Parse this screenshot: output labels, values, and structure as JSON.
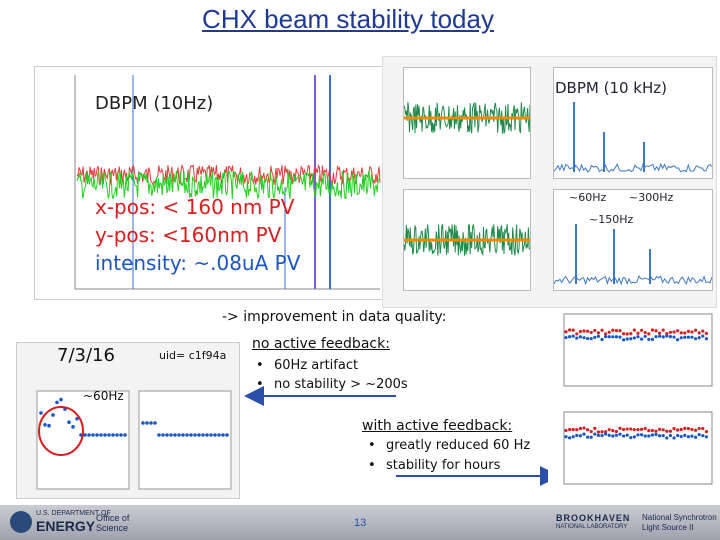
{
  "title": "CHX beam stability today",
  "dbpm": {
    "heading": "DBPM (10Hz)",
    "xpos": "x-pos: < 160 nm PV",
    "ypos": "y-pos: <160nm PV",
    "intensity": "intensity: ~.08uA PV"
  },
  "right_plots": {
    "heading": "DBPM (10 kHz)",
    "label_60hz": "~60Hz",
    "label_300hz": "~300Hz",
    "label_150hz": "~150Hz"
  },
  "improvement": "->  improvement in data quality:",
  "no_feedback": {
    "heading": "no active feedback:",
    "items": [
      "60Hz artifact",
      "no stability > ~200s"
    ]
  },
  "with_feedback": {
    "heading": "with active feedback:",
    "items": [
      "greatly reduced 60 Hz",
      "stability for hours"
    ]
  },
  "inset": {
    "date": "7/3/16",
    "uid": "uid= c1f94a",
    "label": "~60Hz"
  },
  "page_number": "13",
  "footer": {
    "doe_line1": "U.S. DEPARTMENT OF",
    "doe_line2": "ENERGY",
    "office1": "Office of",
    "office2": "Science",
    "bnl1": "BROOKHAVEN",
    "bnl2": "NATIONAL LABORATORY",
    "nsls1": "National Synchrotron",
    "nsls2": "Light Source II"
  },
  "colors": {
    "title": "#1f3a93",
    "accent_red": "#d62020",
    "accent_blue": "#1a56c4",
    "arrow_blue": "#2a4fa8"
  }
}
